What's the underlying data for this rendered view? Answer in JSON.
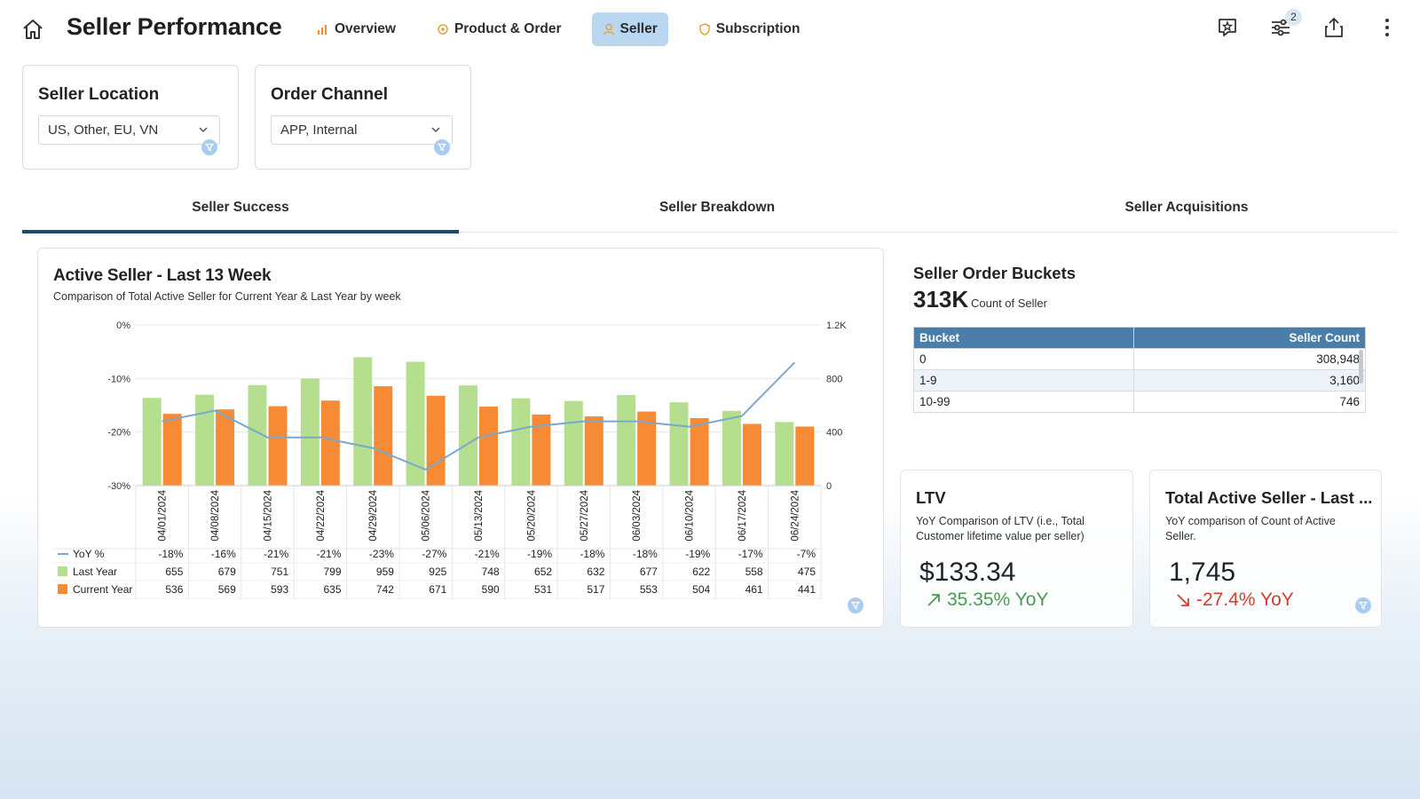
{
  "header": {
    "title": "Seller Performance",
    "nav": [
      {
        "label": "Overview",
        "icon": "bar-chart-icon",
        "active": false
      },
      {
        "label": "Product & Order",
        "icon": "tag-icon",
        "active": false
      },
      {
        "label": "Seller",
        "icon": "person-icon",
        "active": true
      },
      {
        "label": "Subscription",
        "icon": "badge-icon",
        "active": false
      }
    ],
    "filter_badge": "2"
  },
  "filters": [
    {
      "title": "Seller Location",
      "value": "US, Other, EU, VN"
    },
    {
      "title": "Order Channel",
      "value": "APP, Internal"
    }
  ],
  "tabs": [
    "Seller Success",
    "Seller Breakdown",
    "Seller Acquisitions"
  ],
  "active_chart": {
    "title": "Active Seller - Last 13 Week",
    "subtitle": "Comparison of Total Active Seller for Current Year & Last Year by week"
  },
  "chart_data": {
    "type": "bar",
    "categories": [
      "04/01/2024",
      "04/08/2024",
      "04/15/2024",
      "04/22/2024",
      "04/29/2024",
      "05/06/2024",
      "05/13/2024",
      "05/20/2024",
      "05/27/2024",
      "06/03/2024",
      "06/10/2024",
      "06/17/2024",
      "06/24/2024"
    ],
    "series": [
      {
        "name": "Last Year",
        "type": "bar",
        "axis": "right",
        "color": "#b5df8f",
        "values": [
          655,
          679,
          751,
          799,
          959,
          925,
          748,
          652,
          632,
          677,
          622,
          558,
          475
        ]
      },
      {
        "name": "Current Year",
        "type": "bar",
        "axis": "right",
        "color": "#f78a35",
        "values": [
          536,
          569,
          593,
          635,
          742,
          671,
          590,
          531,
          517,
          553,
          504,
          461,
          441
        ]
      },
      {
        "name": "YoY %",
        "type": "line",
        "axis": "left",
        "color": "#7aa7cc",
        "values": [
          -18,
          -16,
          -21,
          -21,
          -23,
          -27,
          -21,
          -19,
          -18,
          -18,
          -19,
          -17,
          -7
        ]
      }
    ],
    "yoy_labels": [
      "-18%",
      "-16%",
      "-21%",
      "-21%",
      "-23%",
      "-27%",
      "-21%",
      "-19%",
      "-18%",
      "-18%",
      "-19%",
      "-17%",
      "-7%"
    ],
    "y_left": {
      "ticks": [
        "0%",
        "-10%",
        "-20%",
        "-30%"
      ],
      "tick_values": [
        0,
        -10,
        -20,
        -30
      ],
      "range": [
        -30,
        0
      ]
    },
    "y_right": {
      "ticks": [
        "1.2K",
        "800",
        "400",
        "0"
      ],
      "tick_values": [
        1200,
        800,
        400,
        0
      ],
      "range": [
        0,
        1200
      ]
    },
    "grid": true,
    "legend": "table-below"
  },
  "buckets": {
    "title": "Seller Order Buckets",
    "kpi": "313K",
    "kpi_label": "Count of Seller",
    "columns": [
      "Bucket",
      "Seller Count"
    ],
    "rows": [
      {
        "bucket": "0",
        "count": "308,948"
      },
      {
        "bucket": "1-9",
        "count": "3,160"
      },
      {
        "bucket": "10-99",
        "count": "746"
      }
    ]
  },
  "ltv": {
    "title": "LTV",
    "desc_line1": "YoY Comparison of LTV (i.e., Total",
    "desc_line2": "Customer lifetime value per seller)",
    "value": "$133.34",
    "delta": "35.35% YoY",
    "delta_color": "#4a9a55"
  },
  "total_active": {
    "title": "Total Active Seller - Last ...",
    "desc_line1": "YoY comparison of Count of Active",
    "desc_line2": "Seller.",
    "value": "1,745",
    "delta": "-27.4% YoY",
    "delta_color": "#d04030"
  }
}
